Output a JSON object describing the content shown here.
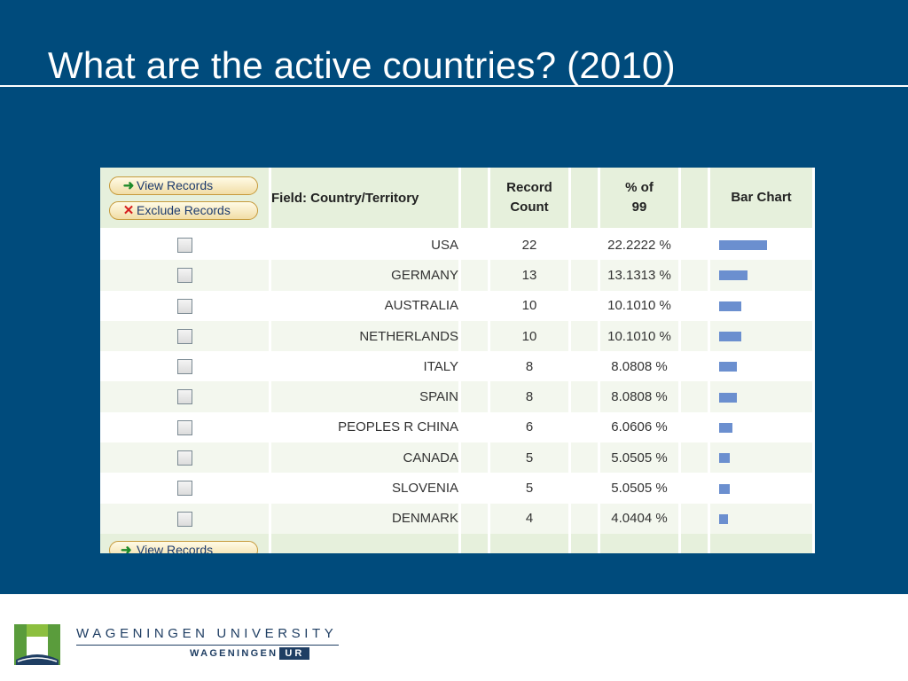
{
  "slide": {
    "title": "What are the active countries? (2010)"
  },
  "table": {
    "buttons": {
      "view_records": "View Records",
      "exclude_records": "Exclude Records"
    },
    "headers": {
      "field": "Field: Country/Territory",
      "record_count_line1": "Record",
      "record_count_line2": "Count",
      "pct_line1": "% of",
      "pct_line2": "99",
      "bar_chart": "Bar Chart"
    },
    "rows": [
      {
        "country": "USA",
        "count": "22",
        "pct": "22.2222 %",
        "share": 0.222222
      },
      {
        "country": "GERMANY",
        "count": "13",
        "pct": "13.1313 %",
        "share": 0.131313
      },
      {
        "country": "AUSTRALIA",
        "count": "10",
        "pct": "10.1010 %",
        "share": 0.10101
      },
      {
        "country": "NETHERLANDS",
        "count": "10",
        "pct": "10.1010 %",
        "share": 0.10101
      },
      {
        "country": "ITALY",
        "count": "8",
        "pct": "8.0808 %",
        "share": 0.080808
      },
      {
        "country": "SPAIN",
        "count": "8",
        "pct": "8.0808 %",
        "share": 0.080808
      },
      {
        "country": "PEOPLES R CHINA",
        "count": "6",
        "pct": "6.0606 %",
        "share": 0.060606
      },
      {
        "country": "CANADA",
        "count": "5",
        "pct": "5.0505 %",
        "share": 0.050505
      },
      {
        "country": "SLOVENIA",
        "count": "5",
        "pct": "5.0505 %",
        "share": 0.050505
      },
      {
        "country": "DENMARK",
        "count": "4",
        "pct": "4.0404 %",
        "share": 0.040404
      }
    ],
    "bar_color": "#6b8fcf"
  },
  "footer": {
    "logo_university": "WAGENINGEN UNIVERSITY",
    "logo_wageningen": "WAGENINGEN",
    "logo_ur": "UR",
    "logo_icon": "wageningen-logo-mark"
  },
  "colors": {
    "slide_background": "#004b7c",
    "header_background": "#e6f0dc"
  }
}
